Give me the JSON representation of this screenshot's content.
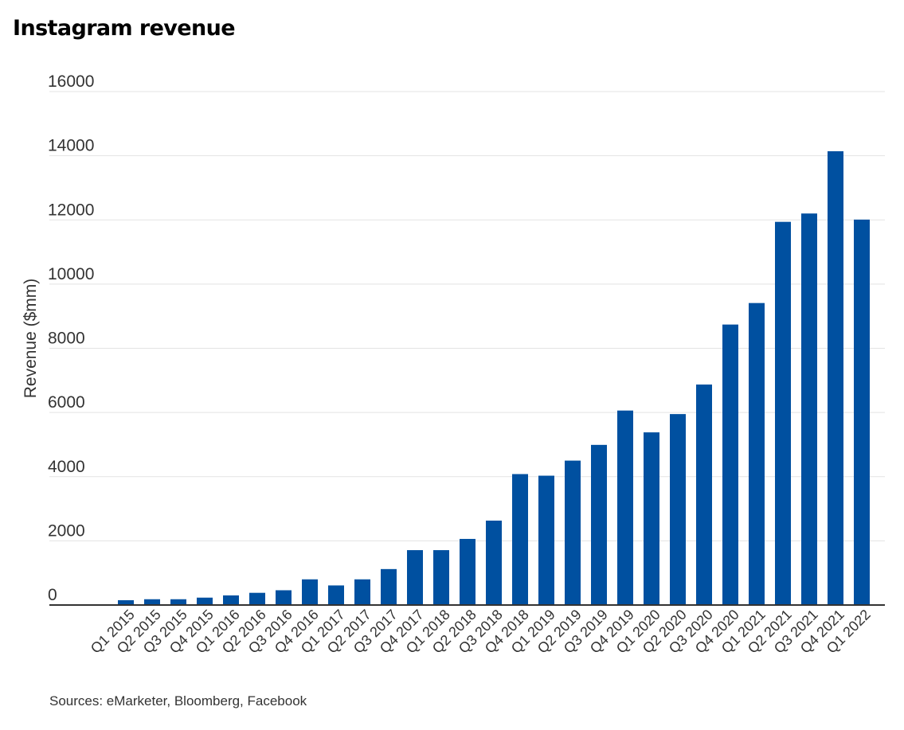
{
  "chart_data": {
    "type": "bar",
    "title": "Instagram revenue",
    "xlabel": "",
    "ylabel": "Revenue ($mm)",
    "ylim": [
      0,
      16000
    ],
    "yticks": [
      0,
      2000,
      4000,
      6000,
      8000,
      10000,
      12000,
      14000,
      16000
    ],
    "grid": true,
    "legend": "none",
    "bar_color": "#0050a0",
    "categories": [
      "Q1 2015",
      "Q2 2015",
      "Q3 2015",
      "Q4 2015",
      "Q1 2016",
      "Q2 2016",
      "Q3 2016",
      "Q4 2016",
      "Q1 2017",
      "Q2 2017",
      "Q3 2017",
      "Q4 2017",
      "Q1 2018",
      "Q2 2018",
      "Q3 2018",
      "Q4 2018",
      "Q1 2019",
      "Q2 2019",
      "Q3 2019",
      "Q4 2019",
      "Q1 2020",
      "Q2 2020",
      "Q3 2020",
      "Q4 2020",
      "Q1 2021",
      "Q2 2021",
      "Q3 2021",
      "Q4 2021",
      "Q1 2022"
    ],
    "values": [
      150,
      180,
      180,
      230,
      300,
      380,
      460,
      800,
      610,
      800,
      1120,
      1710,
      1710,
      2060,
      2630,
      4080,
      4030,
      4500,
      4990,
      6060,
      5380,
      5950,
      6870,
      8740,
      9410,
      11940,
      12200,
      14140,
      12010
    ]
  },
  "footer": {
    "source": "Sources: eMarketer, Bloomberg, Facebook"
  }
}
